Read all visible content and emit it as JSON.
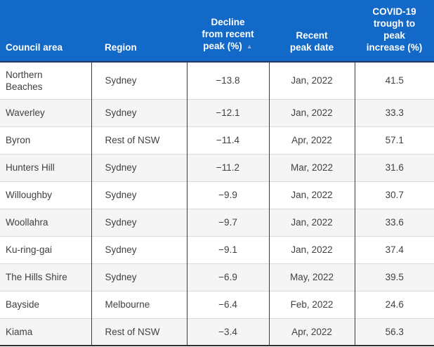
{
  "chart_data": {
    "type": "table",
    "columns": [
      {
        "id": "council_area",
        "label": "Council area",
        "align": "left"
      },
      {
        "id": "region",
        "label": "Region",
        "align": "left"
      },
      {
        "id": "decline_pct",
        "label": "Decline\nfrom recent\npeak (%)",
        "align": "center",
        "sorted": "ascending",
        "sort_indicator": "▲"
      },
      {
        "id": "recent_peak_date",
        "label": "Recent\npeak date",
        "align": "center"
      },
      {
        "id": "trough_to_peak_increase_pct",
        "label": "COVID-19\ntrough to\npeak\nincrease (%)",
        "align": "center"
      }
    ],
    "rows": [
      {
        "council_area": "Northern Beaches",
        "region": "Sydney",
        "decline_pct": "−13.8",
        "recent_peak_date": "Jan, 2022",
        "trough_to_peak_increase_pct": "41.5"
      },
      {
        "council_area": "Waverley",
        "region": "Sydney",
        "decline_pct": "−12.1",
        "recent_peak_date": "Jan, 2022",
        "trough_to_peak_increase_pct": "33.3"
      },
      {
        "council_area": "Byron",
        "region": "Rest of NSW",
        "decline_pct": "−11.4",
        "recent_peak_date": "Apr, 2022",
        "trough_to_peak_increase_pct": "57.1"
      },
      {
        "council_area": "Hunters Hill",
        "region": "Sydney",
        "decline_pct": "−11.2",
        "recent_peak_date": "Mar, 2022",
        "trough_to_peak_increase_pct": "31.6"
      },
      {
        "council_area": "Willoughby",
        "region": "Sydney",
        "decline_pct": "−9.9",
        "recent_peak_date": "Jan, 2022",
        "trough_to_peak_increase_pct": "30.7"
      },
      {
        "council_area": "Woollahra",
        "region": "Sydney",
        "decline_pct": "−9.7",
        "recent_peak_date": "Jan, 2022",
        "trough_to_peak_increase_pct": "33.6"
      },
      {
        "council_area": "Ku-ring-gai",
        "region": "Sydney",
        "decline_pct": "−9.1",
        "recent_peak_date": "Jan, 2022",
        "trough_to_peak_increase_pct": "37.4"
      },
      {
        "council_area": "The Hills Shire",
        "region": "Sydney",
        "decline_pct": "−6.9",
        "recent_peak_date": "May, 2022",
        "trough_to_peak_increase_pct": "39.5"
      },
      {
        "council_area": "Bayside",
        "region": "Melbourne",
        "decline_pct": "−6.4",
        "recent_peak_date": "Feb, 2022",
        "trough_to_peak_increase_pct": "24.6"
      },
      {
        "council_area": "Kiama",
        "region": "Rest of NSW",
        "decline_pct": "−3.4",
        "recent_peak_date": "Apr, 2022",
        "trough_to_peak_increase_pct": "56.3"
      }
    ]
  },
  "colors": {
    "header_bg": "#1269c7",
    "header_text": "#ffffff",
    "header_underline": "#1c3a64",
    "sort_arrow": "#8ca9d4",
    "body_text": "#414141",
    "row_stripe": "#f5f5f6",
    "row_divider": "#d9d9d9",
    "column_divider": "#3b3b3b",
    "table_bottom_border": "#2f2f2f"
  }
}
